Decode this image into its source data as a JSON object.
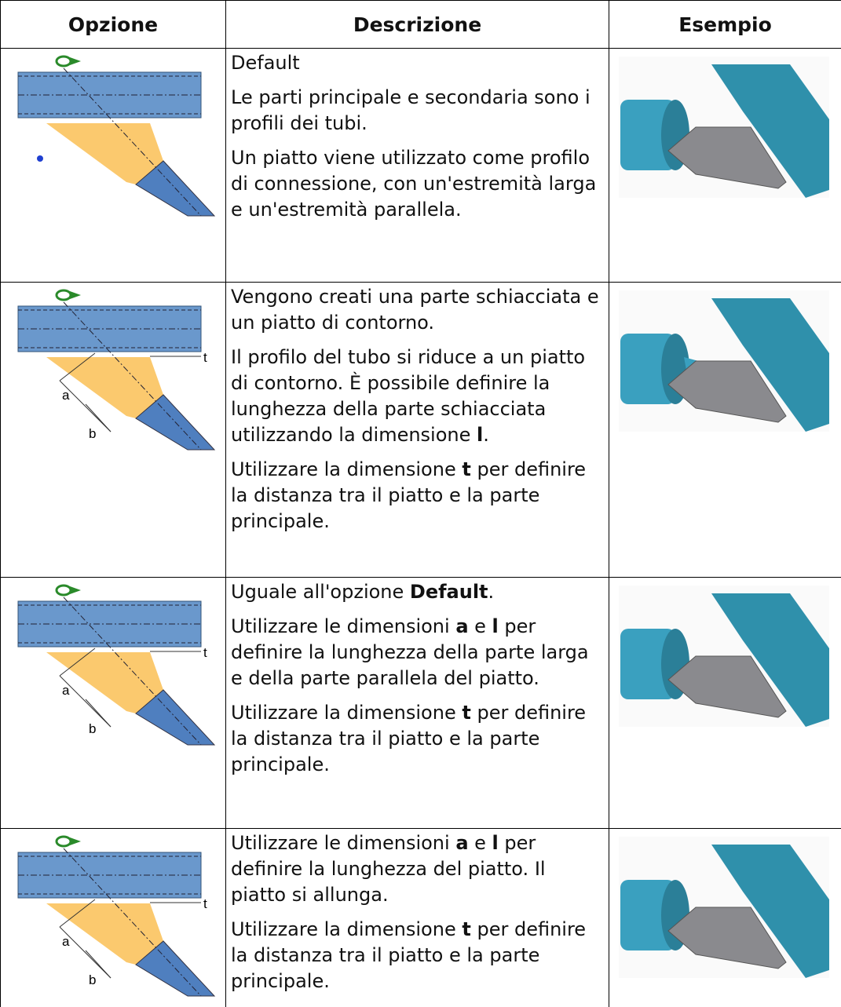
{
  "table": {
    "header": [
      "Opzione",
      "Descrizione",
      "Esempio"
    ],
    "rows": [
      {
        "description": [
          [
            "Default"
          ],
          [
            "Le parti principale e secondaria sono i profili dei tubi."
          ],
          [
            "Un piatto viene utilizzato come profilo di connessione, con un'estremità larga e un'estremità parallela."
          ]
        ],
        "labels": []
      },
      {
        "description": [
          [
            "Vengono creati una parte schiacciata e un piatto di contorno."
          ],
          [
            "Il profilo del tubo si riduce a un piatto di contorno. È possibile definire la lunghezza della parte schiacciata utilizzando la dimensione ",
            {
              "text": "l",
              "bold": true
            },
            "."
          ],
          [
            "Utilizzare la dimensione ",
            {
              "text": "t",
              "bold": true
            },
            " per definire la distanza tra il piatto e la parte principale."
          ]
        ],
        "labels": [
          "t",
          "a",
          "b"
        ]
      },
      {
        "description": [
          [
            "Uguale all'opzione ",
            {
              "text": "Default",
              "bold": true
            },
            "."
          ],
          [
            "Utilizzare le dimensioni ",
            {
              "text": "a",
              "bold": true
            },
            " e ",
            {
              "text": "l",
              "bold": true
            },
            " per definire la lunghezza della parte larga e della parte parallela del piatto."
          ],
          [
            "Utilizzare la dimensione ",
            {
              "text": "t",
              "bold": true
            },
            " per definire la distanza tra il piatto e la parte principale."
          ]
        ],
        "labels": [
          "t",
          "a",
          "b"
        ]
      },
      {
        "description": [
          [
            "Utilizzare le dimensioni ",
            {
              "text": "a",
              "bold": true
            },
            " e ",
            {
              "text": "l",
              "bold": true
            },
            " per definire la lunghezza del piatto. Il piatto si allunga."
          ],
          [
            "Utilizzare la dimensione ",
            {
              "text": "t",
              "bold": true
            },
            " per definire la distanza tra il piatto e la parte principale."
          ]
        ],
        "labels": [
          "t",
          "a",
          "b"
        ]
      }
    ]
  }
}
